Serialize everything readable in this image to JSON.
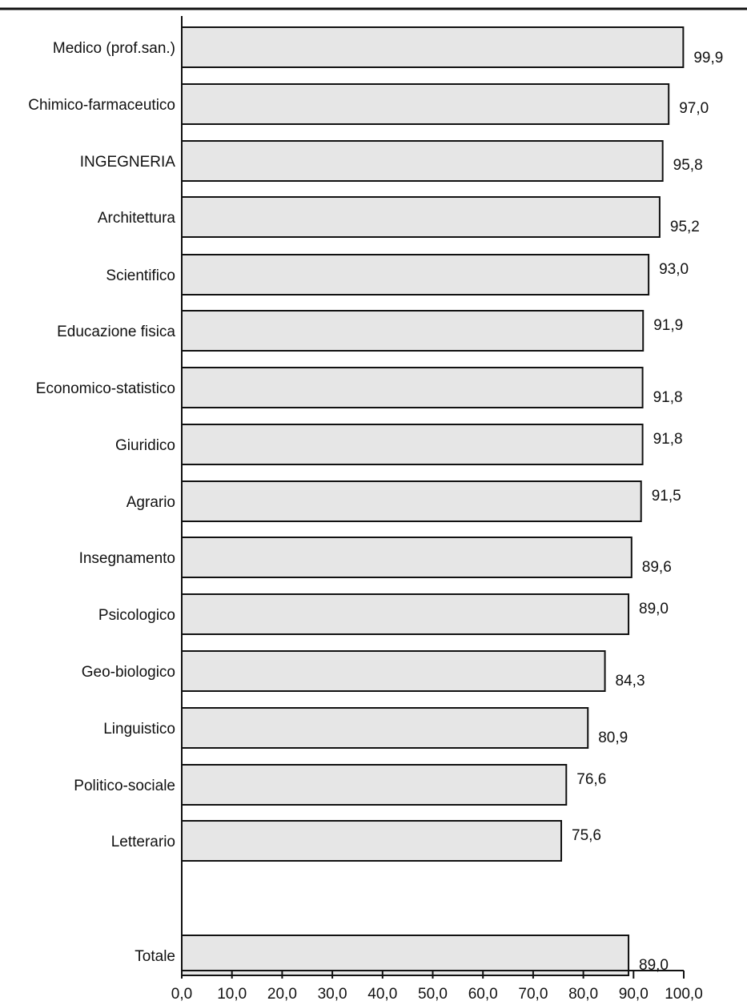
{
  "chart_data": {
    "type": "bar",
    "orientation": "horizontal",
    "categories": [
      "Medico (prof.san.)",
      "Chimico-farmaceutico",
      "INGEGNERIA",
      "Architettura",
      "Scientifico",
      "Educazione fisica",
      "Economico-statistico",
      "Giuridico",
      "Agrario",
      "Insegnamento",
      "Psicologico",
      "Geo-biologico",
      "Linguistico",
      "Politico-sociale",
      "Letterario",
      "Totale"
    ],
    "values": [
      99.9,
      97.0,
      95.8,
      95.2,
      93.0,
      91.9,
      91.8,
      91.8,
      91.5,
      89.6,
      89.0,
      84.3,
      80.9,
      76.6,
      75.6,
      89.0
    ],
    "value_labels": [
      "99,9",
      "97,0",
      "95,8",
      "95,2",
      "93,0",
      "91,9",
      "91,8",
      "91,8",
      "91,5",
      "89,6",
      "89,0",
      "84,3",
      "80,9",
      "76,6",
      "75,6",
      "89,0"
    ],
    "x_ticks": [
      "0,0",
      "10,0",
      "20,0",
      "30,0",
      "40,0",
      "50,0",
      "60,0",
      "70,0",
      "80,0",
      "90,0",
      "100,0"
    ],
    "xlim": [
      0,
      100
    ],
    "grid": false,
    "legend": "none",
    "title": "",
    "xlabel": "",
    "ylabel": "",
    "colors": {
      "bar_fill": "#e6e6e6",
      "bar_stroke": "#111111",
      "axis": "#111111",
      "text": "#111111"
    }
  }
}
